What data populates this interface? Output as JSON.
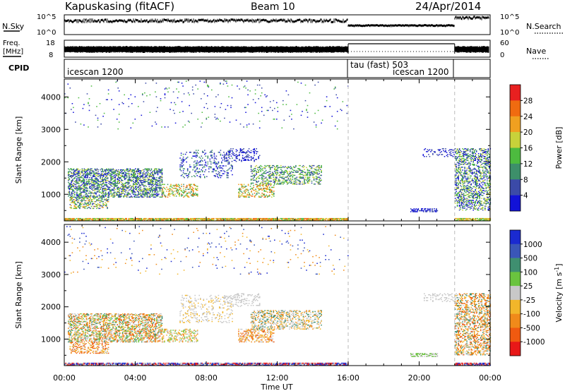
{
  "header": {
    "station": "Kapuskasing (fitACF)",
    "beam": "Beam 10",
    "date": "24/Apr/2014"
  },
  "top_panels": {
    "nsky": {
      "label": "N.Sky",
      "ticks": [
        "10^5",
        "10^0"
      ]
    },
    "nsearch": {
      "label": "N.Search",
      "ticks": [
        "10^5",
        "10^0"
      ]
    },
    "freq": {
      "label_line1": "Freq.",
      "label_line2": "[MHz]",
      "ticks": [
        "18",
        "8"
      ]
    },
    "nave": {
      "label": "Nave",
      "ticks": [
        "60",
        "0"
      ]
    },
    "cpid": {
      "label": "CPID",
      "modes": [
        {
          "name": "icescan 1200",
          "start_hour": 0,
          "end_hour": 16
        },
        {
          "name": "tau (fast) 503",
          "start_hour": 16,
          "end_hour": 22
        },
        {
          "name": "icescan 1200",
          "start_hour": 16,
          "end_hour": 22
        }
      ]
    }
  },
  "chart_data": [
    {
      "type": "heatmap",
      "name": "Power",
      "ylabel": "Slant Range [km]",
      "xlabel": "Time UT",
      "x_ticks": [
        "00:00",
        "04:00",
        "08:00",
        "12:00",
        "16:00",
        "20:00",
        "00:00"
      ],
      "y_ticks": [
        "1000",
        "2000",
        "3000",
        "4000"
      ],
      "xlim_hours": [
        0,
        24
      ],
      "ylim_km": [
        180,
        4550
      ],
      "colorbar": {
        "label": "Power [dB]",
        "ticks": [
          "4",
          "8",
          "12",
          "16",
          "20",
          "24",
          "28"
        ],
        "colors": [
          "#1212d8",
          "#3b4aa8",
          "#3d8f6a",
          "#4dbb3f",
          "#c8d23a",
          "#f0a020",
          "#f06b10",
          "#e82020"
        ]
      },
      "blobs": [
        {
          "t0": 0.2,
          "t1": 5.5,
          "r0": 900,
          "r1": 1800,
          "d": 0.55,
          "pal": [
            0,
            1,
            1,
            2,
            2,
            3,
            4
          ]
        },
        {
          "t0": 0.3,
          "t1": 2.5,
          "r0": 550,
          "r1": 900,
          "d": 0.45,
          "pal": [
            1,
            2,
            3,
            4,
            5
          ]
        },
        {
          "t0": 5.5,
          "t1": 7.5,
          "r0": 900,
          "r1": 1300,
          "d": 0.35,
          "pal": [
            2,
            3,
            4,
            5,
            6
          ]
        },
        {
          "t0": 6.5,
          "t1": 9.5,
          "r0": 1500,
          "r1": 2350,
          "d": 0.18,
          "pal": [
            0,
            1,
            2
          ]
        },
        {
          "t0": 9.8,
          "t1": 11.8,
          "r0": 900,
          "r1": 1300,
          "d": 0.4,
          "pal": [
            2,
            3,
            4,
            5,
            6
          ]
        },
        {
          "t0": 10.5,
          "t1": 14.5,
          "r0": 1300,
          "r1": 1900,
          "d": 0.4,
          "pal": [
            1,
            2,
            3,
            4
          ]
        },
        {
          "t0": 9.0,
          "t1": 11.0,
          "r0": 2000,
          "r1": 2400,
          "d": 0.25,
          "pal": [
            0,
            1
          ]
        },
        {
          "t0": 22.0,
          "t1": 24.0,
          "r0": 500,
          "r1": 2400,
          "d": 0.45,
          "pal": [
            0,
            1,
            2,
            3,
            4
          ]
        },
        {
          "t0": 20.2,
          "t1": 22.0,
          "r0": 2150,
          "r1": 2400,
          "d": 0.2,
          "pal": [
            0,
            1
          ]
        },
        {
          "t0": 19.5,
          "t1": 21.0,
          "r0": 450,
          "r1": 560,
          "d": 0.6,
          "pal": [
            0,
            1
          ]
        },
        {
          "t0": 0.0,
          "t1": 16.0,
          "r0": 3000,
          "r1": 4500,
          "d": 0.02,
          "pal": [
            0,
            1,
            3
          ]
        },
        {
          "t0": 0.0,
          "t1": 16.0,
          "r0": 180,
          "r1": 260,
          "d": 0.9,
          "pal": [
            3,
            4,
            5,
            6
          ]
        },
        {
          "t0": 22.0,
          "t1": 24.0,
          "r0": 180,
          "r1": 260,
          "d": 0.9,
          "pal": [
            3,
            4,
            5
          ]
        }
      ]
    },
    {
      "type": "heatmap",
      "name": "Velocity",
      "ylabel": "Slant Range [km]",
      "xlabel": "Time UT",
      "x_ticks": [
        "00:00",
        "04:00",
        "08:00",
        "12:00",
        "16:00",
        "20:00",
        "00:00"
      ],
      "y_ticks": [
        "1000",
        "2000",
        "3000",
        "4000"
      ],
      "xlim_hours": [
        0,
        24
      ],
      "ylim_km": [
        180,
        4550
      ],
      "colorbar": {
        "label": "Velocity [m s",
        "label_sup": "-1",
        "label_end": "]",
        "ticks": [
          "1000",
          "500",
          "100",
          "25",
          "-25",
          "-100",
          "-500",
          "-1000"
        ],
        "colors": [
          "#1a2ad0",
          "#3a56b8",
          "#3f8f70",
          "#6ac43e",
          "#c8c8c8",
          "#f2b62a",
          "#f08a1a",
          "#f05a10",
          "#e81818"
        ]
      },
      "blobs": [
        {
          "t0": 0.2,
          "t1": 5.5,
          "r0": 900,
          "r1": 1800,
          "d": 0.55,
          "pal": [
            4,
            4,
            5,
            6,
            7,
            3,
            2
          ]
        },
        {
          "t0": 0.3,
          "t1": 2.5,
          "r0": 550,
          "r1": 900,
          "d": 0.45,
          "pal": [
            5,
            6,
            4,
            7
          ]
        },
        {
          "t0": 5.5,
          "t1": 7.5,
          "r0": 900,
          "r1": 1300,
          "d": 0.35,
          "pal": [
            4,
            5,
            6,
            3
          ]
        },
        {
          "t0": 6.5,
          "t1": 9.5,
          "r0": 1500,
          "r1": 2350,
          "d": 0.18,
          "pal": [
            4,
            4,
            5
          ]
        },
        {
          "t0": 9.8,
          "t1": 11.8,
          "r0": 900,
          "r1": 1300,
          "d": 0.4,
          "pal": [
            4,
            5,
            6,
            7
          ]
        },
        {
          "t0": 10.5,
          "t1": 14.5,
          "r0": 1300,
          "r1": 1900,
          "d": 0.4,
          "pal": [
            4,
            4,
            5,
            6,
            2
          ]
        },
        {
          "t0": 9.0,
          "t1": 11.0,
          "r0": 2000,
          "r1": 2400,
          "d": 0.25,
          "pal": [
            4,
            4
          ]
        },
        {
          "t0": 22.0,
          "t1": 24.0,
          "r0": 500,
          "r1": 2400,
          "d": 0.45,
          "pal": [
            4,
            5,
            6,
            7,
            2
          ]
        },
        {
          "t0": 20.2,
          "t1": 22.0,
          "r0": 2150,
          "r1": 2400,
          "d": 0.2,
          "pal": [
            4
          ]
        },
        {
          "t0": 19.5,
          "t1": 21.0,
          "r0": 450,
          "r1": 560,
          "d": 0.6,
          "pal": [
            4,
            3
          ]
        },
        {
          "t0": 0.0,
          "t1": 16.0,
          "r0": 3000,
          "r1": 4500,
          "d": 0.02,
          "pal": [
            5,
            6,
            0,
            1
          ]
        },
        {
          "t0": 0.0,
          "t1": 16.0,
          "r0": 180,
          "r1": 260,
          "d": 0.9,
          "pal": [
            0,
            4,
            8
          ]
        },
        {
          "t0": 22.0,
          "t1": 24.0,
          "r0": 180,
          "r1": 260,
          "d": 0.9,
          "pal": [
            0,
            4,
            8
          ]
        }
      ]
    }
  ]
}
